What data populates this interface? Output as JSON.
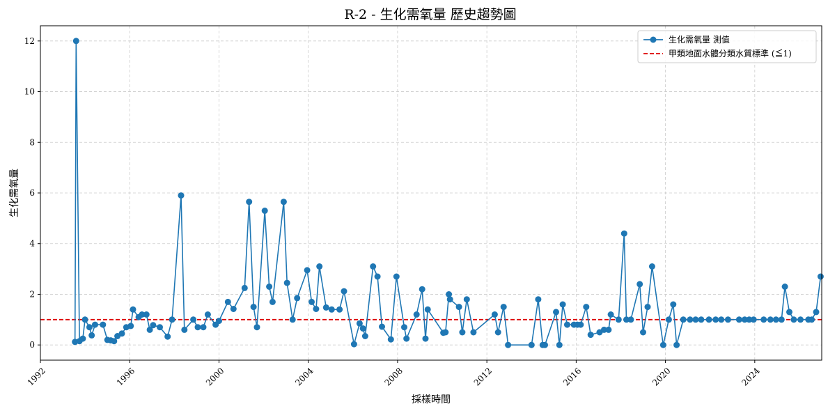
{
  "chart_data": {
    "type": "line",
    "title": "R-2 - 生化需氧量 歷史趨勢圖",
    "xlabel": "採樣時間",
    "ylabel": "生化需氧量",
    "xlim": [
      1992.0,
      2027.0
    ],
    "ylim": [
      -0.6,
      12.6
    ],
    "x_ticks": [
      "1992",
      "1996",
      "2000",
      "2004",
      "2008",
      "2012",
      "2016",
      "2020",
      "2024"
    ],
    "y_ticks": [
      "0",
      "2",
      "4",
      "6",
      "8",
      "10",
      "12"
    ],
    "grid": true,
    "legend_position": "top-right",
    "series": [
      {
        "name": "生化需氧量 測值",
        "color": "#1f77b4",
        "marker": "circle",
        "points": [
          [
            1993.55,
            0.12
          ],
          [
            1993.6,
            12.0
          ],
          [
            1993.75,
            0.15
          ],
          [
            1993.9,
            0.25
          ],
          [
            1994.0,
            1.0
          ],
          [
            1994.2,
            0.7
          ],
          [
            1994.3,
            0.38
          ],
          [
            1994.45,
            0.8
          ],
          [
            1994.8,
            0.8
          ],
          [
            1995.0,
            0.2
          ],
          [
            1995.15,
            0.18
          ],
          [
            1995.3,
            0.15
          ],
          [
            1995.45,
            0.35
          ],
          [
            1995.65,
            0.45
          ],
          [
            1995.85,
            0.7
          ],
          [
            1996.05,
            0.75
          ],
          [
            1996.15,
            1.4
          ],
          [
            1996.4,
            1.1
          ],
          [
            1996.55,
            1.2
          ],
          [
            1996.75,
            1.2
          ],
          [
            1996.9,
            0.6
          ],
          [
            1997.05,
            0.78
          ],
          [
            1997.35,
            0.7
          ],
          [
            1997.7,
            0.33
          ],
          [
            1997.9,
            1.0
          ],
          [
            1998.3,
            5.9
          ],
          [
            1998.45,
            0.6
          ],
          [
            1998.85,
            1.0
          ],
          [
            1999.05,
            0.7
          ],
          [
            1999.3,
            0.7
          ],
          [
            1999.5,
            1.2
          ],
          [
            1999.85,
            0.8
          ],
          [
            2000.0,
            0.95
          ],
          [
            2000.4,
            1.7
          ],
          [
            2000.65,
            1.42
          ],
          [
            2001.15,
            2.25
          ],
          [
            2001.35,
            5.65
          ],
          [
            2001.55,
            1.5
          ],
          [
            2001.7,
            0.7
          ],
          [
            2002.05,
            5.3
          ],
          [
            2002.25,
            2.3
          ],
          [
            2002.4,
            1.7
          ],
          [
            2002.9,
            5.65
          ],
          [
            2003.05,
            2.45
          ],
          [
            2003.3,
            1.0
          ],
          [
            2003.5,
            1.85
          ],
          [
            2003.95,
            2.95
          ],
          [
            2004.15,
            1.7
          ],
          [
            2004.35,
            1.42
          ],
          [
            2004.5,
            3.1
          ],
          [
            2004.8,
            1.48
          ],
          [
            2005.05,
            1.4
          ],
          [
            2005.4,
            1.4
          ],
          [
            2005.6,
            2.12
          ],
          [
            2006.05,
            0.03
          ],
          [
            2006.3,
            0.85
          ],
          [
            2006.45,
            0.65
          ],
          [
            2006.55,
            0.35
          ],
          [
            2006.9,
            3.1
          ],
          [
            2007.1,
            2.7
          ],
          [
            2007.3,
            0.72
          ],
          [
            2007.7,
            0.22
          ],
          [
            2007.95,
            2.7
          ],
          [
            2008.3,
            0.7
          ],
          [
            2008.4,
            0.25
          ],
          [
            2008.85,
            1.2
          ],
          [
            2009.1,
            2.2
          ],
          [
            2009.25,
            0.25
          ],
          [
            2009.35,
            1.4
          ],
          [
            2010.05,
            0.48
          ],
          [
            2010.15,
            0.5
          ],
          [
            2010.3,
            2.0
          ],
          [
            2010.35,
            1.8
          ],
          [
            2010.75,
            1.5
          ],
          [
            2010.9,
            0.5
          ],
          [
            2011.1,
            1.8
          ],
          [
            2011.4,
            0.5
          ],
          [
            2012.35,
            1.2
          ],
          [
            2012.5,
            0.5
          ],
          [
            2012.75,
            1.5
          ],
          [
            2012.95,
            0.0
          ],
          [
            2014.0,
            0.0
          ],
          [
            2014.3,
            1.8
          ],
          [
            2014.5,
            0.0
          ],
          [
            2014.6,
            0.0
          ],
          [
            2015.1,
            1.3
          ],
          [
            2015.25,
            0.0
          ],
          [
            2015.4,
            1.6
          ],
          [
            2015.6,
            0.8
          ],
          [
            2015.9,
            0.8
          ],
          [
            2016.05,
            0.8
          ],
          [
            2016.2,
            0.8
          ],
          [
            2016.45,
            1.5
          ],
          [
            2016.65,
            0.4
          ],
          [
            2017.05,
            0.5
          ],
          [
            2017.25,
            0.6
          ],
          [
            2017.45,
            0.6
          ],
          [
            2017.55,
            1.2
          ],
          [
            2017.9,
            1.0
          ],
          [
            2018.15,
            4.4
          ],
          [
            2018.25,
            1.0
          ],
          [
            2018.45,
            1.0
          ],
          [
            2018.85,
            2.4
          ],
          [
            2019.0,
            0.5
          ],
          [
            2019.2,
            1.5
          ],
          [
            2019.4,
            3.1
          ],
          [
            2019.9,
            0.0
          ],
          [
            2020.15,
            1.0
          ],
          [
            2020.35,
            1.6
          ],
          [
            2020.5,
            0.0
          ],
          [
            2020.8,
            1.0
          ],
          [
            2021.1,
            1.0
          ],
          [
            2021.35,
            1.0
          ],
          [
            2021.6,
            1.0
          ],
          [
            2021.95,
            1.0
          ],
          [
            2022.25,
            1.0
          ],
          [
            2022.5,
            1.0
          ],
          [
            2022.8,
            1.0
          ],
          [
            2023.3,
            1.0
          ],
          [
            2023.55,
            1.0
          ],
          [
            2023.75,
            1.0
          ],
          [
            2023.95,
            1.0
          ],
          [
            2024.4,
            1.0
          ],
          [
            2024.7,
            1.0
          ],
          [
            2024.95,
            1.0
          ],
          [
            2025.2,
            1.0
          ],
          [
            2025.35,
            2.3
          ],
          [
            2025.55,
            1.3
          ],
          [
            2025.75,
            1.0
          ],
          [
            2026.05,
            1.0
          ],
          [
            2026.4,
            1.0
          ],
          [
            2026.55,
            1.0
          ],
          [
            2026.75,
            1.3
          ],
          [
            2026.95,
            2.7
          ]
        ]
      }
    ],
    "reference_line": {
      "name": "甲類地面水體分類水質標準 (≦1)",
      "value": 1,
      "color": "#dd0000",
      "style": "dashed"
    }
  }
}
